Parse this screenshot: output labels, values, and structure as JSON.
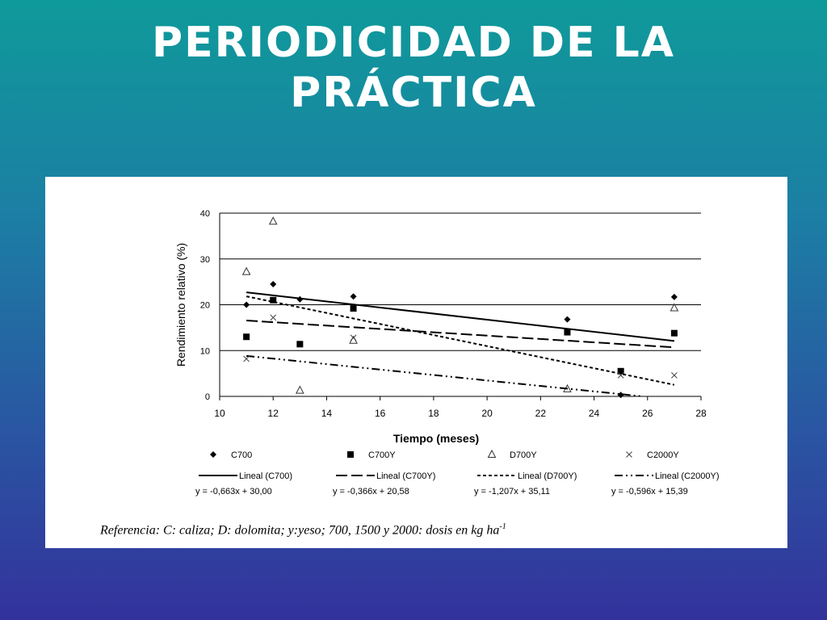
{
  "slide": {
    "title_line1": "PERIODICIDAD DE LA",
    "title_line2": "PRÁCTICA",
    "background_top": "#0f9a9a",
    "background_bottom": "#33329c"
  },
  "reference": {
    "text": "Referencia: C: caliza; D: dolomita; y:yeso; 700, 1500 y 2000: dosis en kg ha",
    "superscript": "-1"
  },
  "chart_data": {
    "type": "scatter",
    "xlabel": "Tiempo (meses)",
    "ylabel": "Rendimiento relativo (%)",
    "xlim": [
      10,
      28
    ],
    "ylim": [
      0,
      40
    ],
    "xticks": [
      10,
      12,
      14,
      16,
      18,
      20,
      22,
      24,
      26,
      28
    ],
    "yticks": [
      0,
      10,
      20,
      30,
      40
    ],
    "grid": "horizontal",
    "legend_position": "bottom",
    "series": [
      {
        "name": "C700",
        "marker": "diamond",
        "points": [
          [
            11,
            20
          ],
          [
            12,
            24.5
          ],
          [
            13,
            21.2
          ],
          [
            15,
            21.8
          ],
          [
            23,
            16.8
          ],
          [
            25,
            0.3
          ],
          [
            27,
            21.7
          ]
        ],
        "trend_label": "Lineal (C700)",
        "trend_style": "solid",
        "slope": -0.663,
        "intercept": 30.0,
        "equation": "y = -0,663x + 30,00"
      },
      {
        "name": "C700Y",
        "marker": "square",
        "points": [
          [
            11,
            13
          ],
          [
            12,
            21
          ],
          [
            13,
            11.4
          ],
          [
            15,
            19.2
          ],
          [
            23,
            14
          ],
          [
            25,
            5.5
          ],
          [
            27,
            13.8
          ]
        ],
        "trend_label": "Lineal (C700Y)",
        "trend_style": "longdash",
        "slope": -0.366,
        "intercept": 20.58,
        "equation": "y = -0,366x + 20,58"
      },
      {
        "name": "D700Y",
        "marker": "triangle",
        "points": [
          [
            11,
            27.2
          ],
          [
            12,
            38.2
          ],
          [
            13,
            1.3
          ],
          [
            15,
            12.2
          ],
          [
            23,
            1.6
          ],
          [
            27,
            19.3
          ]
        ],
        "trend_label": "Lineal (D700Y)",
        "trend_style": "shortdash",
        "slope": -1.207,
        "intercept": 35.11,
        "equation": "y = -1,207x + 35,11"
      },
      {
        "name": "C2000Y",
        "marker": "cross",
        "points": [
          [
            11,
            8.2
          ],
          [
            12,
            17.2
          ],
          [
            15,
            12.8
          ],
          [
            25,
            4.6
          ],
          [
            27,
            4.6
          ]
        ],
        "trend_label": "Lineal (C2000Y)",
        "trend_style": "dashdotdot",
        "slope": -0.596,
        "intercept": 15.39,
        "equation": "y = -0,596x + 15,39"
      }
    ]
  }
}
